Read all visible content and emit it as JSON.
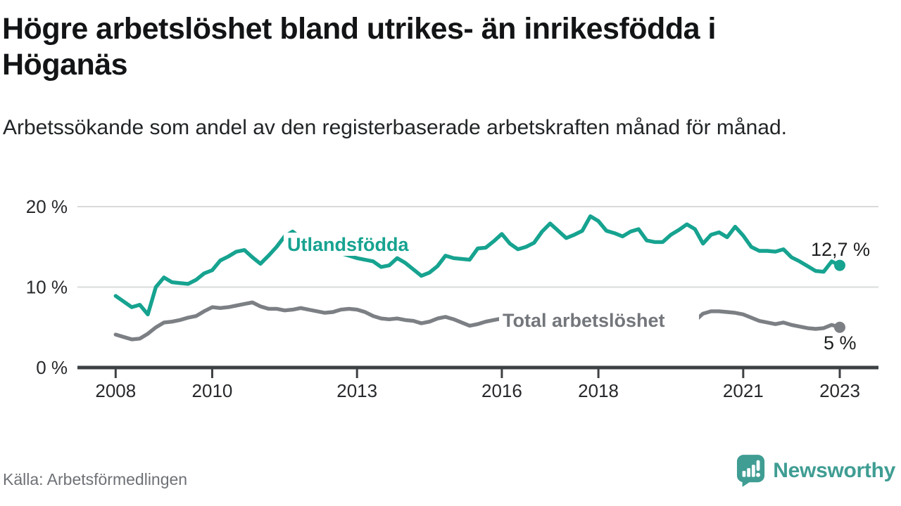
{
  "header": {
    "title": "Högre arbetslöshet bland utrikes- än inrikesfödda i Höganäs",
    "subtitle": "Arbetssökande som andel av den registerbaserade arbetskraften månad för månad."
  },
  "footer": {
    "source": "Källa: Arbetsförmedlingen",
    "brand_name": "Newsworthy"
  },
  "colors": {
    "series_foreign_born": "#16a390",
    "series_total": "#7c7f84",
    "series_total_label": "#73767b",
    "logo_teal": "#3f9d93",
    "axis": "#3e4144",
    "grid": "#d9dadb",
    "tick_text": "#27292c",
    "end_label_text": "#1c1e20"
  },
  "chart_data": {
    "type": "line",
    "x_unit": "year",
    "y_unit": "%",
    "x_start": 2008,
    "x_end": 2023,
    "x_step_months": 2,
    "ylim": [
      0,
      20
    ],
    "grid": "horizontal",
    "legend": "inline-labels",
    "xticks": [
      {
        "year": 2008,
        "label": "2008"
      },
      {
        "year": 2010,
        "label": "2010"
      },
      {
        "year": 2013,
        "label": "2013"
      },
      {
        "year": 2016,
        "label": "2016"
      },
      {
        "year": 2018,
        "label": "2018"
      },
      {
        "year": 2021,
        "label": "2021"
      },
      {
        "year": 2023,
        "label": "2023"
      }
    ],
    "yticks": [
      {
        "value": 20,
        "label": "20 %"
      },
      {
        "value": 10,
        "label": "10 %"
      },
      {
        "value": 0,
        "label": "0 %"
      }
    ],
    "series": [
      {
        "name": "Utlandsfödda",
        "slug": "utlandsfodda",
        "color": "#16a390",
        "end_label": "12,7 %",
        "last_value": 12.7,
        "values": [
          8.9,
          8.2,
          7.5,
          7.8,
          6.6,
          10.0,
          11.2,
          10.6,
          10.5,
          10.4,
          10.9,
          11.7,
          12.1,
          13.3,
          13.8,
          14.4,
          14.6,
          13.7,
          12.9,
          13.9,
          15.0,
          16.3,
          16.9,
          16.1,
          15.4,
          14.9,
          14.6,
          14.3,
          14.2,
          13.9,
          13.6,
          13.4,
          13.2,
          12.5,
          12.7,
          13.6,
          13.0,
          12.2,
          11.4,
          11.8,
          12.6,
          13.9,
          13.6,
          13.5,
          13.4,
          14.8,
          14.9,
          15.7,
          16.6,
          15.4,
          14.7,
          15.0,
          15.5,
          16.9,
          17.9,
          17.0,
          16.1,
          16.5,
          17.0,
          18.8,
          18.2,
          17.0,
          16.7,
          16.3,
          16.9,
          17.2,
          15.8,
          15.6,
          15.6,
          16.5,
          17.1,
          17.8,
          17.2,
          15.4,
          16.5,
          16.8,
          16.2,
          17.5,
          16.4,
          15.0,
          14.5,
          14.5,
          14.4,
          14.7,
          13.7,
          13.2,
          12.6,
          12.0,
          11.9,
          13.2,
          12.7
        ]
      },
      {
        "name": "Total arbetslöshet",
        "slug": "total-arbetsloshet",
        "color": "#7c7f84",
        "end_label": "5 %",
        "last_value": 5,
        "values": [
          4.1,
          3.8,
          3.5,
          3.6,
          4.2,
          5.0,
          5.6,
          5.7,
          5.9,
          6.2,
          6.4,
          7.0,
          7.5,
          7.4,
          7.5,
          7.7,
          7.9,
          8.1,
          7.6,
          7.3,
          7.3,
          7.1,
          7.2,
          7.4,
          7.2,
          7.0,
          6.8,
          6.9,
          7.2,
          7.3,
          7.2,
          6.9,
          6.4,
          6.1,
          6.0,
          6.1,
          5.9,
          5.8,
          5.5,
          5.7,
          6.1,
          6.3,
          6.0,
          5.6,
          5.2,
          5.4,
          5.7,
          5.9,
          6.1,
          5.9,
          5.7,
          5.6,
          5.5,
          5.4,
          5.5,
          5.4,
          5.3,
          5.3,
          5.4,
          5.5,
          5.4,
          5.2,
          5.2,
          5.1,
          5.2,
          5.3,
          5.2,
          5.1,
          5.2,
          5.3,
          5.4,
          5.5,
          5.8,
          6.7,
          7.0,
          7.0,
          6.9,
          6.8,
          6.6,
          6.2,
          5.8,
          5.6,
          5.4,
          5.6,
          5.3,
          5.1,
          4.9,
          4.8,
          4.9,
          5.3,
          5.0
        ]
      }
    ]
  }
}
